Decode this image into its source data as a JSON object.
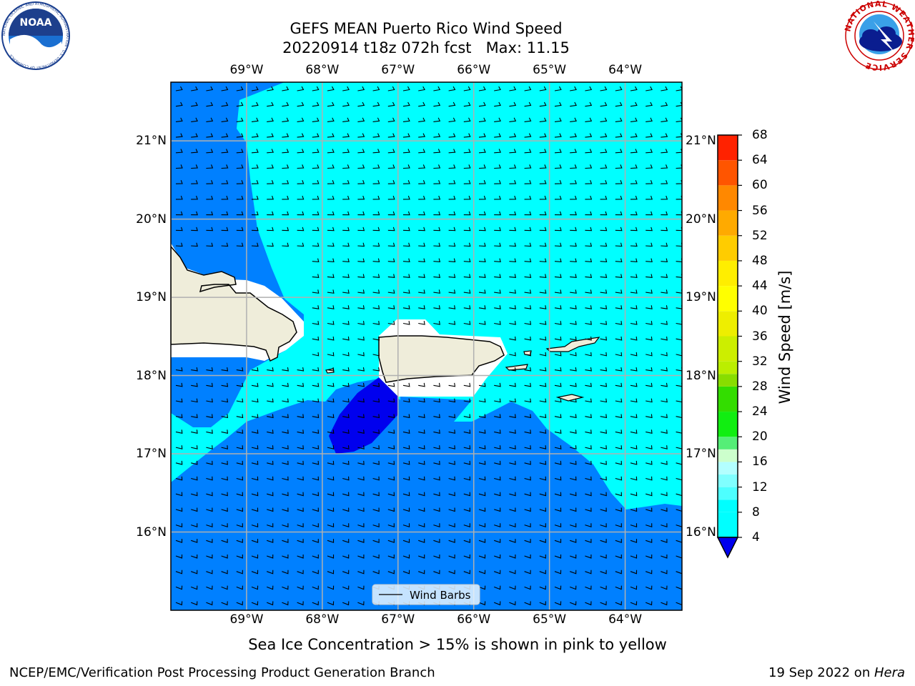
{
  "header": {
    "title_line1": "GEFS MEAN Puerto Rico Wind Speed",
    "title_line2": "20220914 t18z 072h fcst   Max: 11.15"
  },
  "logos": {
    "left_text": "NOAA",
    "left_ring_text": "NATIONAL OCEANIC AND ATMOSPHERIC ADMINISTRATION · U.S. DEPARTMENT OF COMMERCE",
    "right_ring_text": "NATIONAL WEATHER SERVICE"
  },
  "map": {
    "lon_labels": [
      "69°W",
      "68°W",
      "67°W",
      "66°W",
      "65°W",
      "64°W"
    ],
    "lat_labels": [
      "21°N",
      "20°N",
      "19°N",
      "18°N",
      "17°N",
      "16°N"
    ],
    "lon_range": [
      -70.0,
      -63.25
    ],
    "lat_range": [
      15.0,
      21.75
    ],
    "grid": true,
    "legend_label": "Wind Barbs",
    "legend_placement": "bottom-center"
  },
  "colorbar": {
    "label": "Wind Speed [m/s]",
    "ticks": [
      "68",
      "64",
      "60",
      "56",
      "52",
      "48",
      "44",
      "40",
      "36",
      "32",
      "28",
      "24",
      "20",
      "16",
      "12",
      "8",
      "4"
    ],
    "levels": [
      4,
      8,
      10,
      12,
      14,
      16,
      18,
      20,
      24,
      28,
      30,
      32,
      36,
      40,
      44,
      48,
      52,
      56,
      60,
      64,
      68
    ],
    "colors": [
      "#00ffff",
      "#00ffff",
      "#4dffff",
      "#80ffff",
      "#b3ffff",
      "#ccffcc",
      "#55ee77",
      "#11ee11",
      "#33dd00",
      "#88dd00",
      "#bbee00",
      "#ccee00",
      "#eeee00",
      "#ffff00",
      "#ffee00",
      "#ffcc00",
      "#ffaa00",
      "#ff8800",
      "#ff5500",
      "#ff2200"
    ],
    "under_color": "#0000ee",
    "base_color": "#0080ff"
  },
  "colors": {
    "deep_blue": "#0000ee",
    "blue": "#0080ff",
    "cyan": "#00ffff",
    "land": "#efedda",
    "grid": "#b0b0b0"
  },
  "notes": {
    "sea_ice": "Sea Ice Concentration > 15% is shown in pink to yellow"
  },
  "footer": {
    "left": "NCEP/EMC/Verification Post Processing Product Generation Branch",
    "right_prefix": "19 Sep 2022 on ",
    "right_machine": "Hera"
  }
}
